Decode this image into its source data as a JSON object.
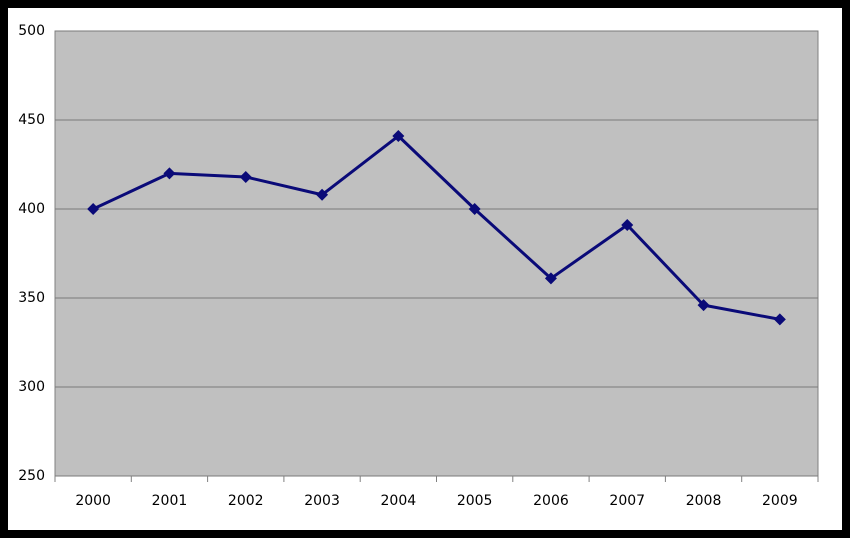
{
  "chart_data": {
    "type": "line",
    "categories": [
      "2000",
      "2001",
      "2002",
      "2003",
      "2004",
      "2005",
      "2006",
      "2007",
      "2008",
      "2009"
    ],
    "series": [
      {
        "color": "#0a0a78",
        "values": [
          400,
          420,
          418,
          408,
          441,
          400,
          361,
          391,
          346,
          338
        ]
      }
    ],
    "ylim": [
      250,
      500
    ],
    "yticks": [
      250,
      300,
      350,
      400,
      450,
      500
    ],
    "grid": true
  }
}
